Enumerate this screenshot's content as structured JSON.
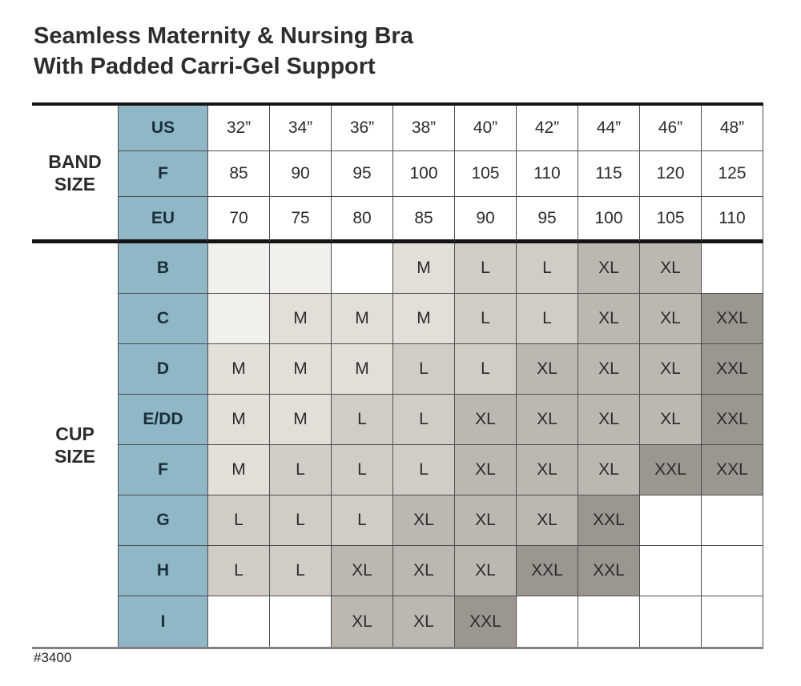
{
  "title": {
    "line1": "Seamless Maternity & Nursing Bra",
    "line2": "With Padded Carri-Gel Support"
  },
  "footer": {
    "item_number": "#3400"
  },
  "colors": {
    "header_teal": "#8fb7c5",
    "header_text": "#182f3a",
    "grid_line": "#4e4e4e",
    "thick_line": "#141414",
    "bottom_line": "#828282",
    "size_M": "#e2dfd9",
    "size_L": "#d1cdc6",
    "size_XL": "#bcb8b1",
    "size_XXL": "#9b9790",
    "empty_faint": "#f2f0ec",
    "empty_white": "#ffffff"
  },
  "chart_data": {
    "type": "table",
    "band_section": {
      "label": "BAND\nSIZE",
      "rows": [
        {
          "label": "US",
          "values": [
            "32”",
            "34”",
            "36”",
            "38”",
            "40”",
            "42”",
            "44”",
            "46”",
            "48”"
          ]
        },
        {
          "label": "F",
          "values": [
            "85",
            "90",
            "95",
            "100",
            "105",
            "110",
            "115",
            "120",
            "125"
          ]
        },
        {
          "label": "EU",
          "values": [
            "70",
            "75",
            "80",
            "85",
            "90",
            "95",
            "100",
            "105",
            "110"
          ]
        }
      ]
    },
    "cup_section": {
      "label": "CUP\nSIZE",
      "rows": [
        {
          "label": "B",
          "cells": [
            {
              "t": "",
              "s": "faint"
            },
            {
              "t": "",
              "s": "faint"
            },
            {
              "t": "",
              "s": "white"
            },
            {
              "t": "M"
            },
            {
              "t": "L"
            },
            {
              "t": "L"
            },
            {
              "t": "XL"
            },
            {
              "t": "XL"
            },
            {
              "t": "",
              "s": "white"
            }
          ]
        },
        {
          "label": "C",
          "cells": [
            {
              "t": "",
              "s": "faint"
            },
            {
              "t": "M"
            },
            {
              "t": "M"
            },
            {
              "t": "M"
            },
            {
              "t": "L"
            },
            {
              "t": "L"
            },
            {
              "t": "XL"
            },
            {
              "t": "XL"
            },
            {
              "t": "XXL"
            }
          ]
        },
        {
          "label": "D",
          "cells": [
            {
              "t": "M"
            },
            {
              "t": "M"
            },
            {
              "t": "M"
            },
            {
              "t": "L"
            },
            {
              "t": "L"
            },
            {
              "t": "XL"
            },
            {
              "t": "XL"
            },
            {
              "t": "XL"
            },
            {
              "t": "XXL"
            }
          ]
        },
        {
          "label": "E/DD",
          "cells": [
            {
              "t": "M"
            },
            {
              "t": "M"
            },
            {
              "t": "L"
            },
            {
              "t": "L"
            },
            {
              "t": "XL"
            },
            {
              "t": "XL"
            },
            {
              "t": "XL"
            },
            {
              "t": "XL"
            },
            {
              "t": "XXL"
            }
          ]
        },
        {
          "label": "F",
          "cells": [
            {
              "t": "M"
            },
            {
              "t": "L"
            },
            {
              "t": "L"
            },
            {
              "t": "L"
            },
            {
              "t": "XL"
            },
            {
              "t": "XL"
            },
            {
              "t": "XL"
            },
            {
              "t": "XXL"
            },
            {
              "t": "XXL"
            }
          ]
        },
        {
          "label": "G",
          "cells": [
            {
              "t": "L"
            },
            {
              "t": "L"
            },
            {
              "t": "L"
            },
            {
              "t": "XL"
            },
            {
              "t": "XL"
            },
            {
              "t": "XL"
            },
            {
              "t": "XXL"
            },
            {
              "t": "",
              "s": "white"
            },
            {
              "t": "",
              "s": "white"
            }
          ]
        },
        {
          "label": "H",
          "cells": [
            {
              "t": "L"
            },
            {
              "t": "L"
            },
            {
              "t": "XL"
            },
            {
              "t": "XL"
            },
            {
              "t": "XL"
            },
            {
              "t": "XXL"
            },
            {
              "t": "XXL"
            },
            {
              "t": "",
              "s": "white"
            },
            {
              "t": "",
              "s": "white"
            }
          ]
        },
        {
          "label": "I",
          "cells": [
            {
              "t": "",
              "s": "white"
            },
            {
              "t": "",
              "s": "white"
            },
            {
              "t": "XL"
            },
            {
              "t": "XL"
            },
            {
              "t": "XXL"
            },
            {
              "t": "",
              "s": "white"
            },
            {
              "t": "",
              "s": "white"
            },
            {
              "t": "",
              "s": "white"
            },
            {
              "t": "",
              "s": "white"
            }
          ]
        }
      ]
    }
  }
}
